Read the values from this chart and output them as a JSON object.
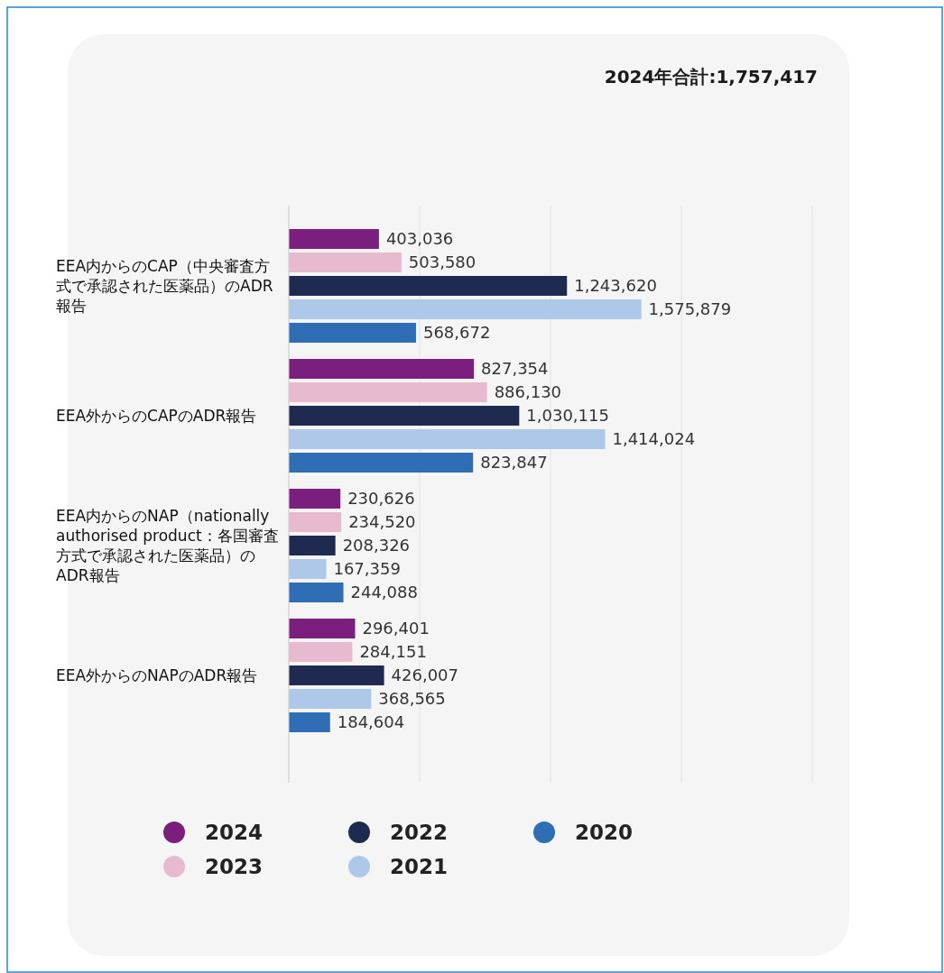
{
  "chart_data": {
    "type": "bar",
    "orientation": "horizontal",
    "title": "2024年合計:1,757,417",
    "categories": [
      "EEA内からのCAP（中央審査方式で承認された医薬品）のADR報告",
      "EEA外からのCAPのADR報告",
      "EEA内からのNAP（nationally authorised product：各国審査方式で承認された医薬品）のADR報告",
      "EEA外からのNAPのADR報告"
    ],
    "series": [
      {
        "name": "2024",
        "color": "#7b1f7e",
        "values": [
          403036,
          827354,
          230626,
          296401
        ],
        "value_labels": [
          "403,036",
          "827,354",
          "230,626",
          "296,401"
        ]
      },
      {
        "name": "2023",
        "color": "#e8bad0",
        "values": [
          503580,
          886130,
          234520,
          284151
        ],
        "value_labels": [
          "503,580",
          "886,130",
          "234,520",
          "284,151"
        ]
      },
      {
        "name": "2022",
        "color": "#1e2a4f",
        "values": [
          1243620,
          1030115,
          208326,
          426007
        ],
        "value_labels": [
          "1,243,620",
          "1,030,115",
          "208,326",
          "426,007"
        ]
      },
      {
        "name": "2021",
        "color": "#aec8ea",
        "values": [
          1575879,
          1414024,
          167359,
          368565
        ],
        "value_labels": [
          "1,575,879",
          "1,414,024",
          "167,359",
          "368,565"
        ]
      },
      {
        "name": "2020",
        "color": "#2f6db5",
        "values": [
          568672,
          823847,
          244088,
          184604
        ],
        "value_labels": [
          "568,672",
          "823,847",
          "244,088",
          "184,604"
        ]
      }
    ],
    "xlim": [
      0,
      2340000
    ],
    "xticks": [
      {
        "value": 0,
        "label": null
      },
      {
        "value": 585000,
        "label": null
      },
      {
        "value": 1170000,
        "label": null
      },
      {
        "value": 1755000,
        "label": null
      },
      {
        "value": 2340000,
        "label": null
      }
    ],
    "grid": "x",
    "legend": "bottom"
  }
}
